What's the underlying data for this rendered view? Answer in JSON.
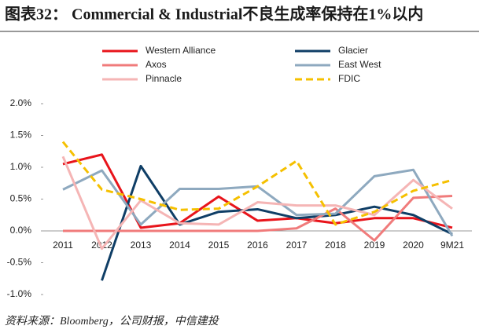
{
  "chart_data": {
    "type": "line",
    "title": "图表32： Commercial & Industrial不良生成率保持在1%以内",
    "source": "资料来源：Bloomberg，公司财报，中信建投",
    "categories": [
      "2011",
      "2012",
      "2013",
      "2014",
      "2015",
      "2016",
      "2017",
      "2018",
      "2019",
      "2020",
      "9M21"
    ],
    "series": [
      {
        "name": "Western Alliance",
        "color": "#e8141b",
        "values": [
          1.05,
          1.2,
          0.05,
          0.12,
          0.54,
          0.16,
          0.2,
          0.12,
          0.2,
          0.2,
          0.05
        ]
      },
      {
        "name": "Glacier",
        "color": "#0f3e66",
        "values": [
          null,
          -0.78,
          1.02,
          0.1,
          0.3,
          0.34,
          0.2,
          0.25,
          0.38,
          0.25,
          -0.05
        ]
      },
      {
        "name": "Axos",
        "color": "#f07b7b",
        "values": [
          0,
          0,
          0,
          0,
          0,
          0,
          0.04,
          0.35,
          -0.15,
          0.52,
          0.55
        ]
      },
      {
        "name": "East West",
        "color": "#8ea9bf",
        "values": [
          0.65,
          0.95,
          0.1,
          0.66,
          0.66,
          0.7,
          0.25,
          0.27,
          0.86,
          0.96,
          -0.08
        ]
      },
      {
        "name": "Pinnacle",
        "color": "#f5b5b5",
        "values": [
          1.17,
          -0.28,
          0.48,
          0.12,
          0.1,
          0.45,
          0.4,
          0.4,
          0.25,
          0.8,
          0.35
        ]
      },
      {
        "name": "FDIC",
        "color": "#f5c000",
        "dashed": true,
        "values": [
          1.4,
          0.65,
          0.5,
          0.33,
          0.35,
          0.7,
          1.1,
          0.1,
          0.3,
          0.63,
          0.8
        ]
      }
    ],
    "ylim": [
      -1.0,
      2.0
    ],
    "yticks": [
      {
        "value": -1.0,
        "label": "-1.0%"
      },
      {
        "value": -0.5,
        "label": "-0.5%"
      },
      {
        "value": 0,
        "label": "0.0%"
      },
      {
        "value": 0.5,
        "label": "0.5%"
      },
      {
        "value": 1.0,
        "label": "1.0%"
      },
      {
        "value": 1.5,
        "label": "1.5%"
      },
      {
        "value": 2.0,
        "label": "2.0%"
      }
    ]
  }
}
